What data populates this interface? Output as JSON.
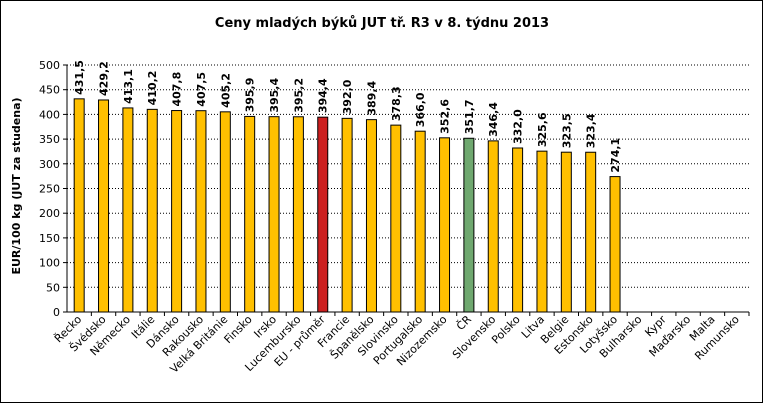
{
  "chart_data": {
    "type": "bar",
    "title": "Ceny mladých býků JUT  tř. R3  v 8. týdnu 2013",
    "xlabel": "",
    "ylabel": "EUR/100 kg (JUT za studena)",
    "ylim": [
      0,
      500
    ],
    "yticks": [
      0,
      50,
      100,
      150,
      200,
      250,
      300,
      350,
      400,
      450,
      500
    ],
    "grid": "horizontal dashed",
    "categories": [
      "Řecko",
      "Švédsko",
      "Německo",
      "Itálie",
      "Dánsko",
      "Rakousko",
      "Velká Británie",
      "Finsko",
      "Irsko",
      "Lucembursko",
      "EU - průměr",
      "Francie",
      "Španělsko",
      "Slovinsko",
      "Portugalsko",
      "Nizozemsko",
      "ČR",
      "Slovensko",
      "Polsko",
      "Litva",
      "Belgie",
      "Estonsko",
      "Lotyšsko",
      "Bulharsko",
      "Kypr",
      "Maďarsko",
      "Malta",
      "Rumunsko"
    ],
    "values": [
      431.5,
      429.2,
      413.1,
      410.2,
      407.8,
      407.5,
      405.2,
      395.9,
      395.4,
      395.2,
      394.4,
      392.0,
      389.4,
      378.3,
      366.0,
      352.6,
      351.7,
      346.4,
      332.0,
      325.6,
      323.5,
      323.4,
      274.1,
      null,
      null,
      null,
      null,
      null
    ],
    "data_labels": [
      "431,5",
      "429,2",
      "413,1",
      "410,2",
      "407,8",
      "407,5",
      "405,2",
      "395,9",
      "395,4",
      "395,2",
      "394,4",
      "392,0",
      "389,4",
      "378,3",
      "366,0",
      "352,6",
      "351,7",
      "346,4",
      "332,0",
      "325,6",
      "323,5",
      "323,4",
      "274,1",
      "",
      "",
      "",
      "",
      ""
    ],
    "colors": {
      "default": "#ffc000",
      "EU - průměr": "#cc1f1f",
      "ČR": "#6fa86f",
      "bar_stroke": "#000000",
      "grid": "#000000"
    }
  }
}
